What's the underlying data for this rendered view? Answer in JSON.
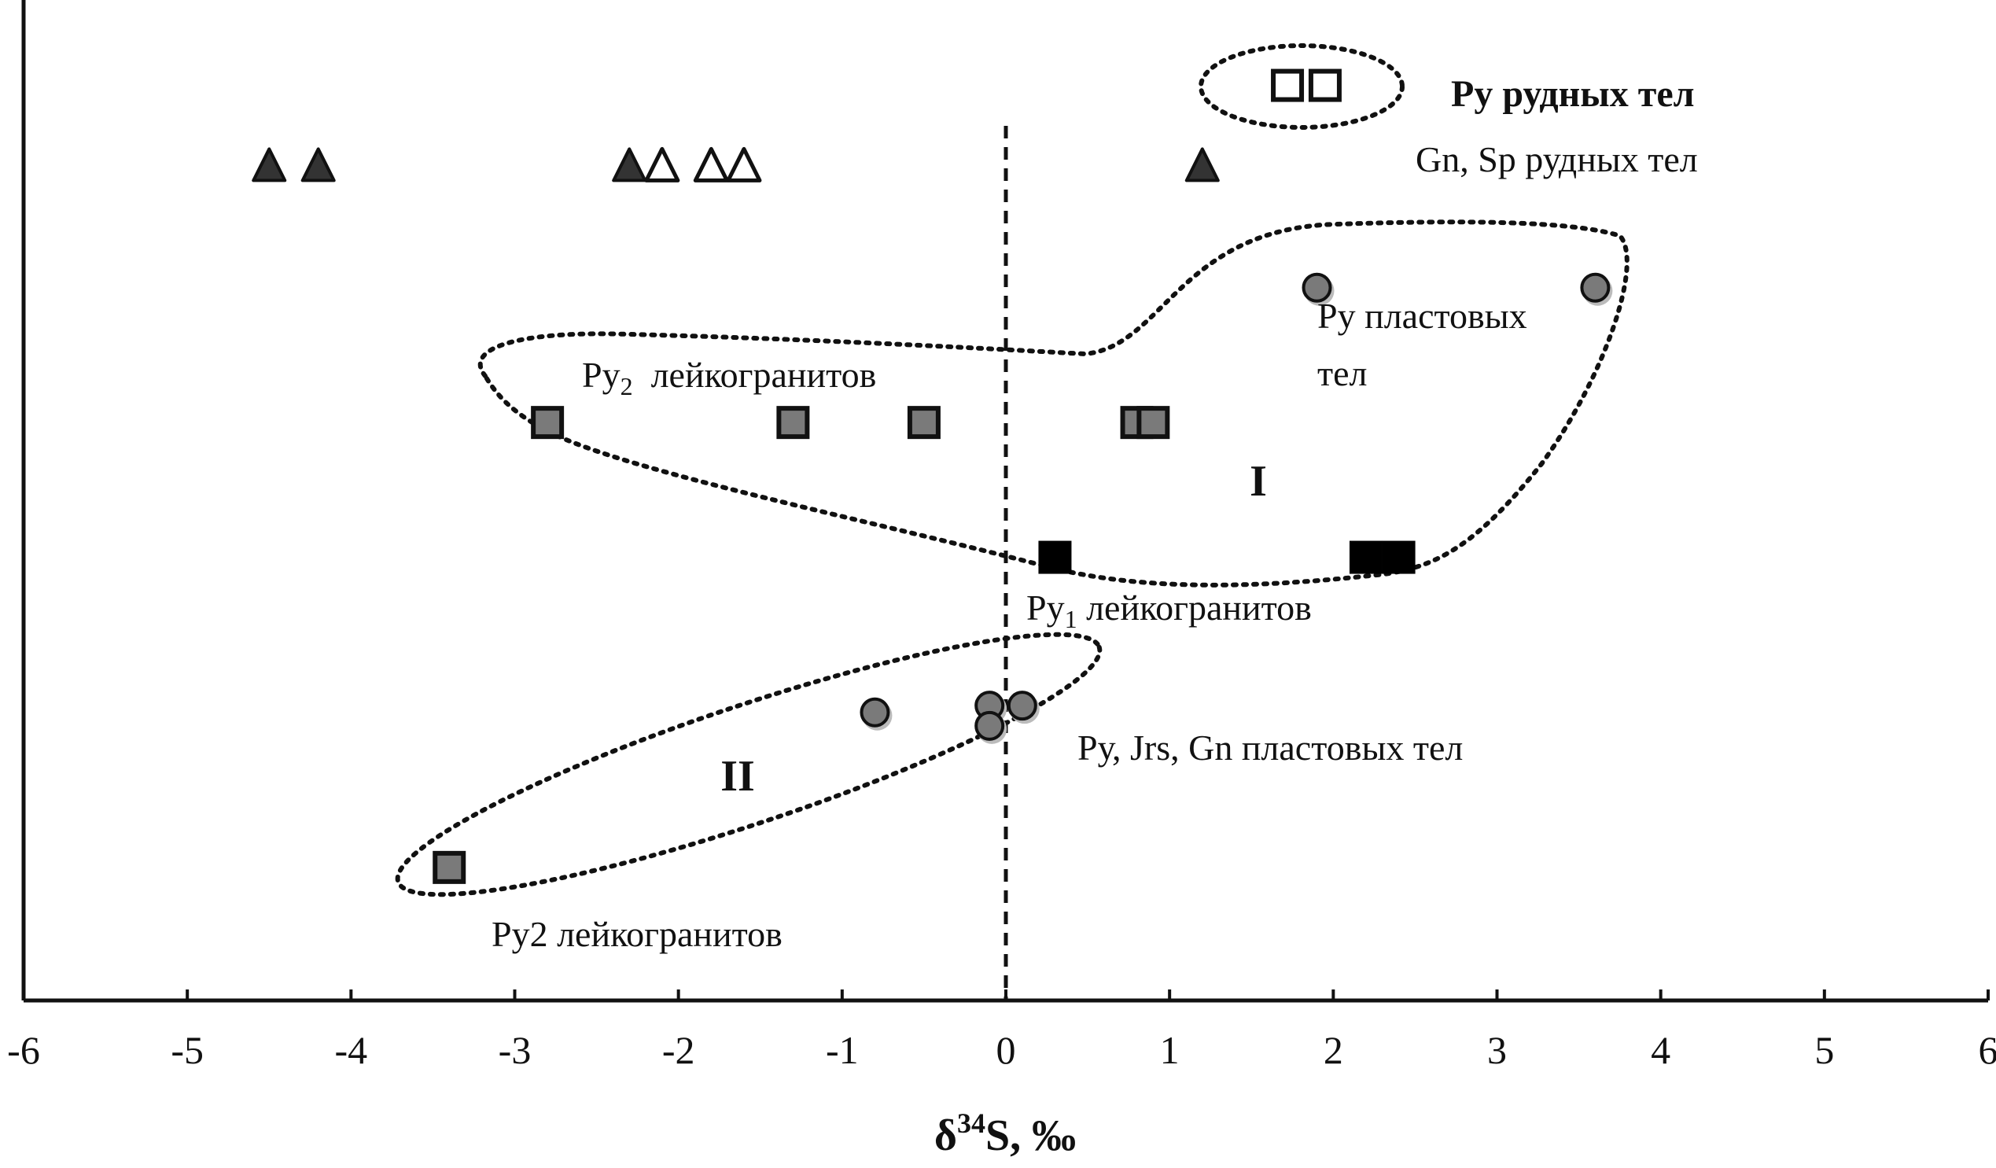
{
  "chart_data": {
    "type": "scatter",
    "xlabel_parts": [
      "δ",
      "34",
      "S, ‰"
    ],
    "xlim": [
      -6,
      6
    ],
    "x_ticks": [
      "-6",
      "-5",
      "-4",
      "-3",
      "-2",
      "-1",
      "0",
      "1",
      "2",
      "3",
      "4",
      "5",
      "6"
    ],
    "reference_line_x": 0,
    "series": [
      {
        "name": "Ру рудных тел",
        "marker": "square-open",
        "points": [
          {
            "x": 1.72,
            "y": 6.6
          },
          {
            "x": 1.95,
            "y": 6.6
          }
        ]
      },
      {
        "name": "Gn, Sp рудных тел",
        "marker": "triangle-filled",
        "points": [
          {
            "x": -4.5,
            "y": 6.0
          },
          {
            "x": -4.2,
            "y": 6.0
          },
          {
            "x": -2.3,
            "y": 6.0
          },
          {
            "x": 1.2,
            "y": 6.0
          }
        ]
      },
      {
        "name": "Gn, Sp рудных тел",
        "marker": "triangle-open",
        "points": [
          {
            "x": -2.1,
            "y": 6.0
          },
          {
            "x": -1.8,
            "y": 6.0
          },
          {
            "x": -1.6,
            "y": 6.0
          }
        ]
      },
      {
        "name": "Ру пластовых тел",
        "marker": "circle-grey",
        "points": [
          {
            "x": 1.9,
            "y": 5.1
          },
          {
            "x": 3.6,
            "y": 5.1
          }
        ]
      },
      {
        "name": "Ру2 лейкогранитов",
        "marker": "square-grey",
        "points": [
          {
            "x": -2.8,
            "y": 4.1
          },
          {
            "x": -1.3,
            "y": 4.1
          },
          {
            "x": -0.5,
            "y": 4.1
          },
          {
            "x": 0.8,
            "y": 4.1
          },
          {
            "x": 0.9,
            "y": 4.1
          }
        ]
      },
      {
        "name": "Ру1 лейкогранитов",
        "marker": "square-black",
        "points": [
          {
            "x": 0.3,
            "y": 3.1
          },
          {
            "x": 2.2,
            "y": 3.1
          },
          {
            "x": 2.4,
            "y": 3.1
          }
        ]
      },
      {
        "name": "Ру, Jrs, Gn пластовых тел",
        "marker": "circle-grey",
        "points": [
          {
            "x": -0.8,
            "y": 1.95
          },
          {
            "x": -0.1,
            "y": 2.0
          },
          {
            "x": -0.1,
            "y": 1.85
          },
          {
            "x": 0.1,
            "y": 2.0
          }
        ]
      },
      {
        "name": "Ру2 лейкогранитов",
        "marker": "square-grey",
        "points": [
          {
            "x": -3.4,
            "y": 0.8
          }
        ]
      }
    ],
    "annotations": {
      "ore_py": "Ру рудных тел",
      "ore_gn_sp": "Gn, Sp рудных тел",
      "strat_py_line1": "Ру пластовых",
      "strat_py_line2": "тел",
      "py2_prefix": "Ру",
      "py2_sub": "2",
      "py2_suffix": "  лейкогранитов",
      "py1_prefix": "Ру",
      "py1_sub": "1",
      "py1_suffix": " лейкогранитов",
      "strat_mix": "Ру, Jrs, Gn пластовых тел",
      "py2_lower": "Ру2 лейкогранитов",
      "group_I": "I",
      "group_II": "II"
    }
  }
}
